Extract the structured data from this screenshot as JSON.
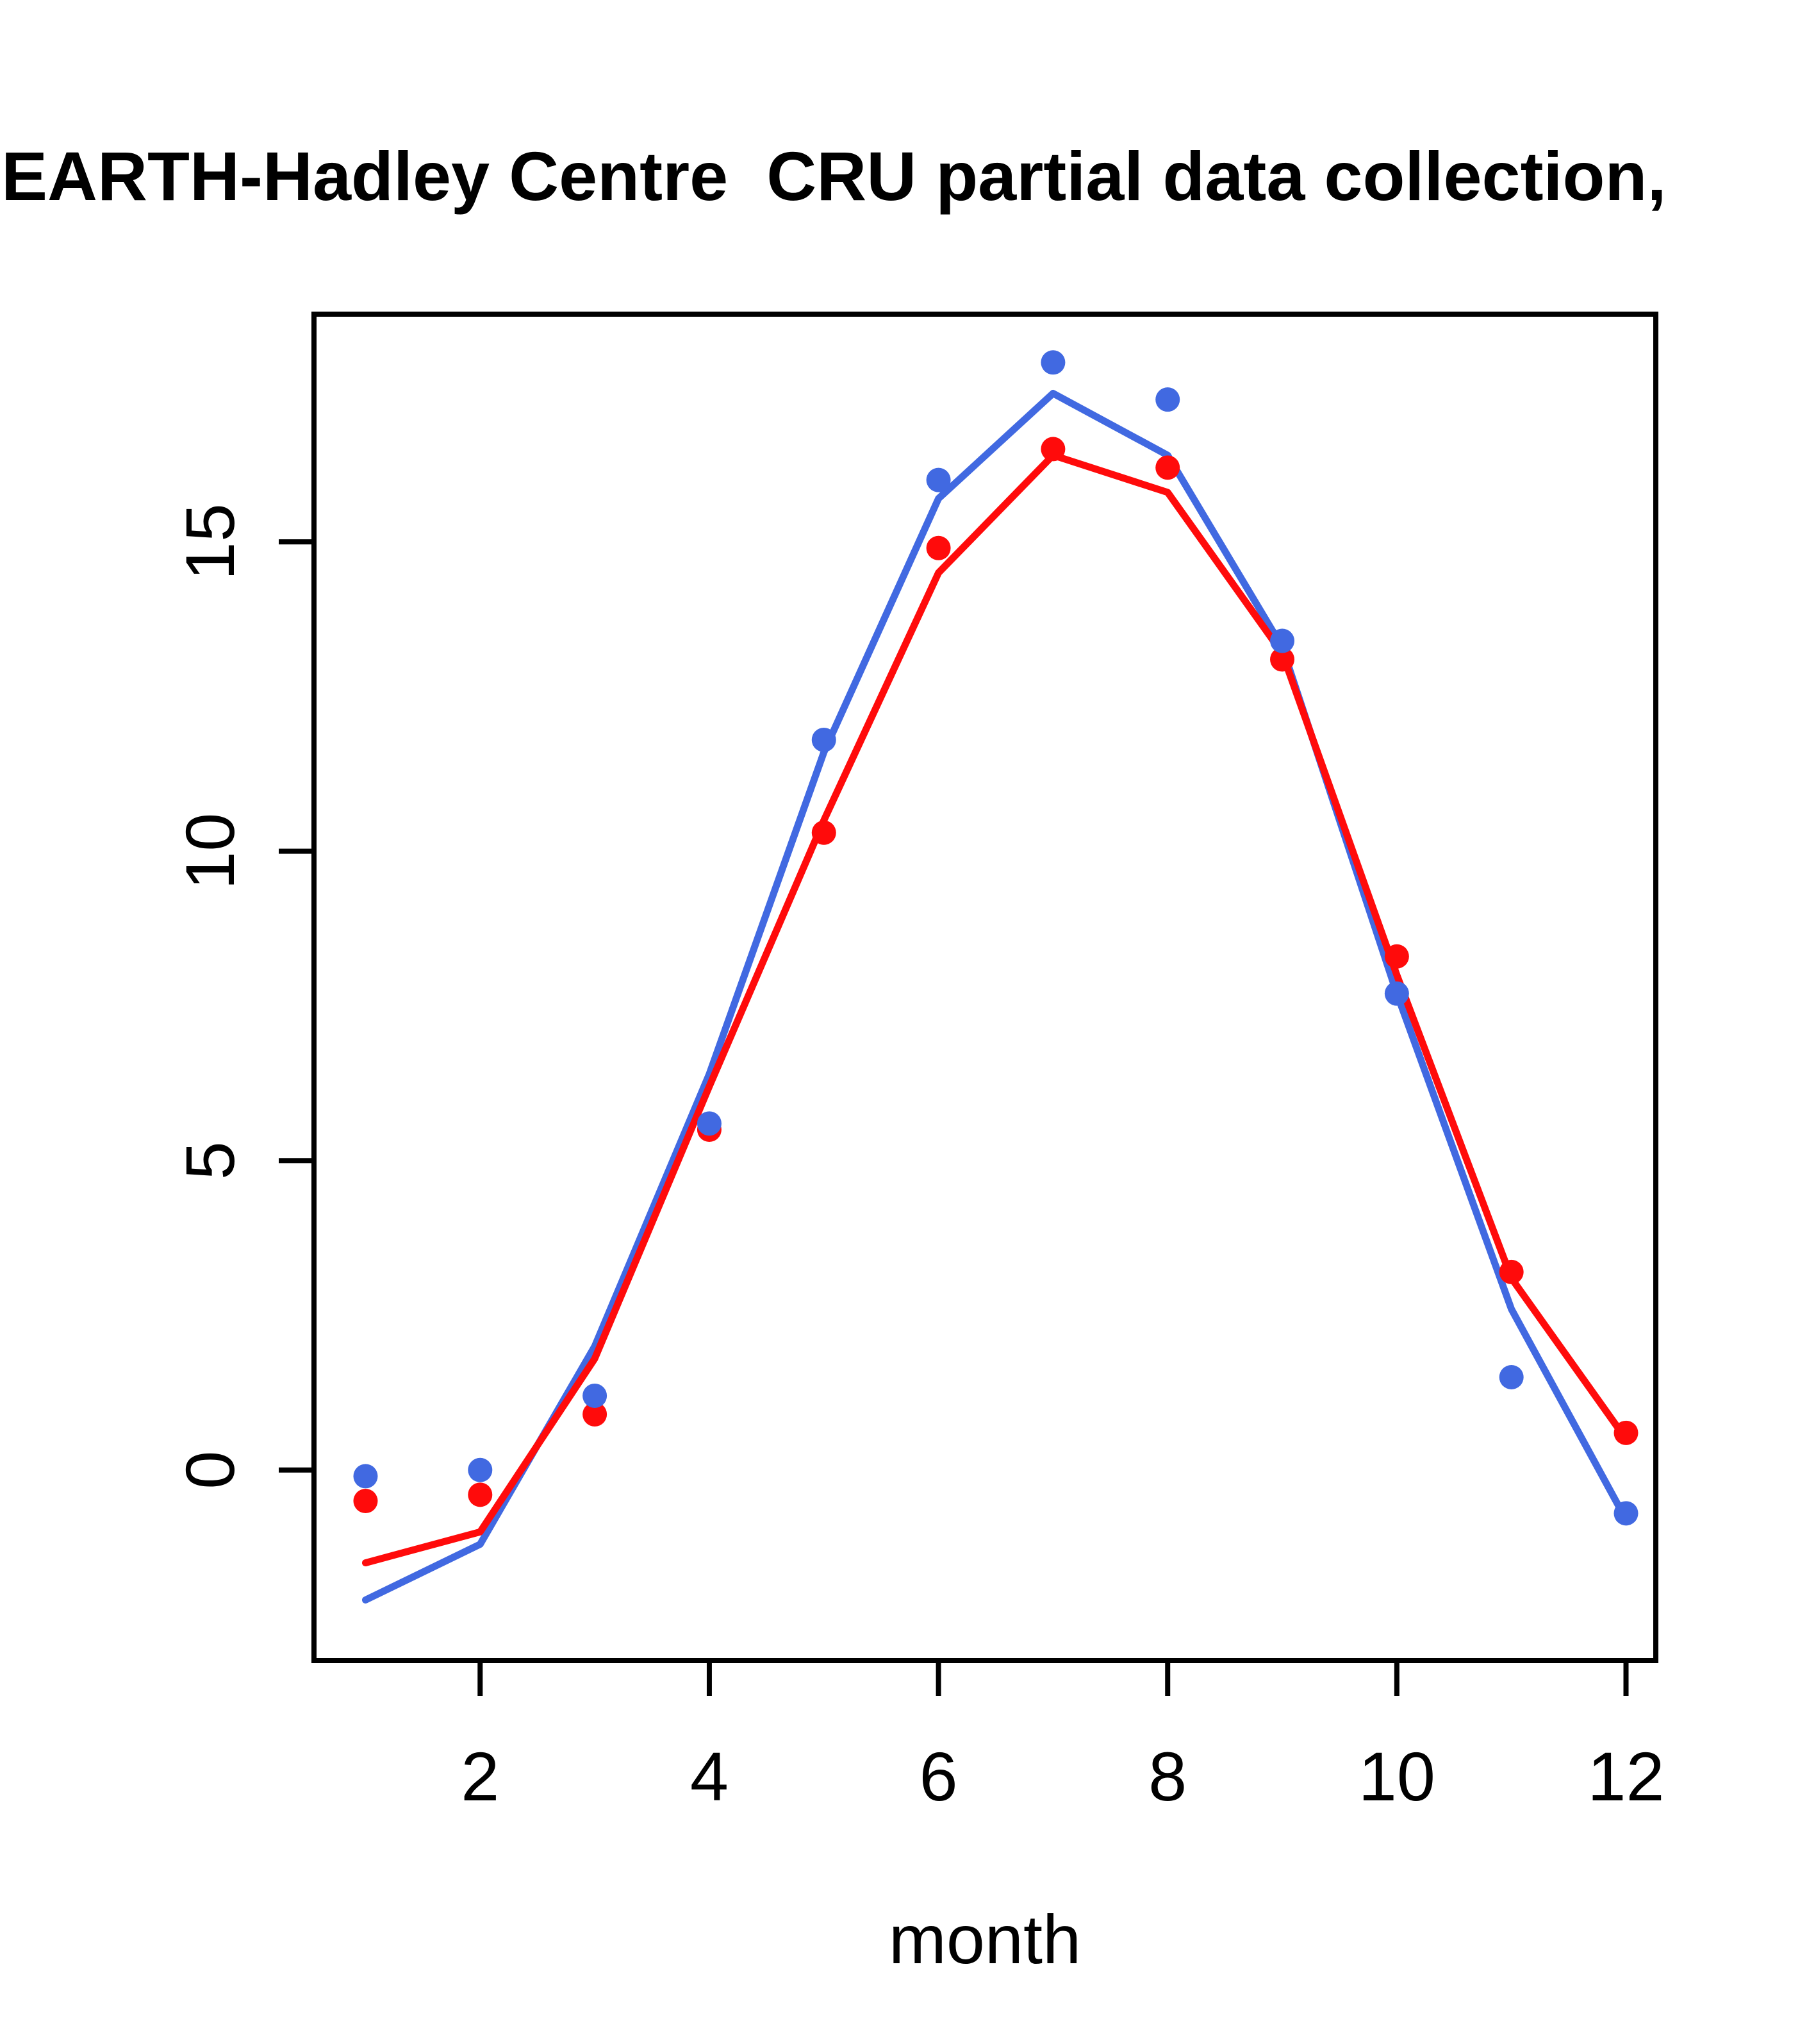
{
  "title": "EARTH-Hadley Centre  CRU partial data collection,",
  "chart_data": {
    "type": "line",
    "title": "EARTH-Hadley Centre  CRU partial data collection,",
    "xlabel": "month",
    "ylabel": "",
    "x": [
      1,
      2,
      3,
      4,
      5,
      6,
      7,
      8,
      9,
      10,
      11,
      12
    ],
    "x_ticks": [
      2,
      4,
      6,
      8,
      10,
      12
    ],
    "y_ticks": [
      0,
      5,
      10,
      15
    ],
    "xlim": [
      0.55,
      12.26
    ],
    "ylim": [
      -3.08,
      18.68
    ],
    "grid": false,
    "legend": "none",
    "colors": {
      "blue": "#4169E1",
      "red": "#FF0B0B",
      "axis": "#000000"
    },
    "series": [
      {
        "name": "blue-line",
        "style": "line",
        "color": "#4169E1",
        "values": [
          -2.1,
          -1.2,
          2.0,
          6.4,
          11.6,
          15.7,
          17.4,
          16.4,
          13.3,
          7.7,
          2.6,
          -0.8
        ]
      },
      {
        "name": "red-line",
        "style": "line",
        "color": "#FF0B0B",
        "values": [
          -1.5,
          -1.0,
          1.8,
          6.2,
          10.5,
          14.5,
          16.4,
          15.8,
          13.2,
          8.0,
          3.1,
          0.5
        ]
      },
      {
        "name": "red-points",
        "style": "scatter",
        "color": "#FF0B0B",
        "values": [
          -0.5,
          -0.4,
          0.9,
          5.5,
          10.3,
          14.9,
          16.5,
          16.2,
          13.1,
          8.3,
          3.2,
          0.6
        ]
      },
      {
        "name": "blue-points",
        "style": "scatter",
        "color": "#4169E1",
        "values": [
          -0.1,
          0.0,
          1.2,
          5.6,
          11.8,
          16.0,
          17.9,
          17.3,
          13.4,
          7.7,
          1.5,
          -0.7
        ]
      }
    ]
  }
}
